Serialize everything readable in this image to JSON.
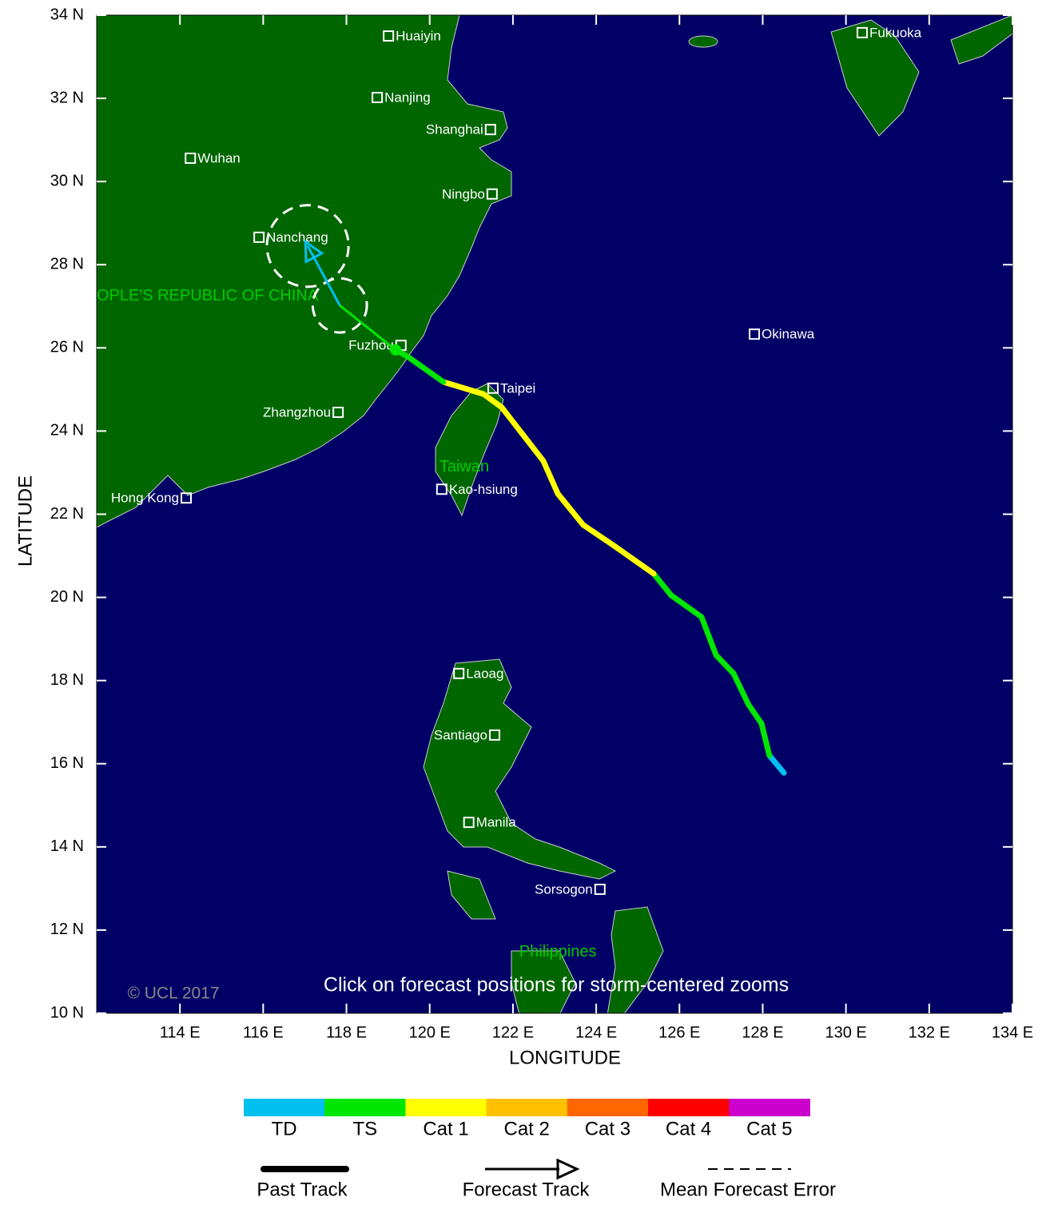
{
  "chart_data": {
    "type": "track-map",
    "xlabel": "LONGITUDE",
    "ylabel": "LATITUDE",
    "xlim": [
      112,
      134
    ],
    "ylim": [
      10,
      34
    ],
    "xticks": [
      {
        "value": 114,
        "label": "114 E"
      },
      {
        "value": 116,
        "label": "116 E"
      },
      {
        "value": 118,
        "label": "118 E"
      },
      {
        "value": 120,
        "label": "120 E"
      },
      {
        "value": 122,
        "label": "122 E"
      },
      {
        "value": 124,
        "label": "124 E"
      },
      {
        "value": 126,
        "label": "126 E"
      },
      {
        "value": 128,
        "label": "128 E"
      },
      {
        "value": 130,
        "label": "130 E"
      },
      {
        "value": 132,
        "label": "132 E"
      },
      {
        "value": 134,
        "label": "134 E"
      }
    ],
    "yticks": [
      {
        "value": 10,
        "label": "10 N"
      },
      {
        "value": 12,
        "label": "12 N"
      },
      {
        "value": 14,
        "label": "14 N"
      },
      {
        "value": 16,
        "label": "16 N"
      },
      {
        "value": 18,
        "label": "18 N"
      },
      {
        "value": 20,
        "label": "20 N"
      },
      {
        "value": 22,
        "label": "22 N"
      },
      {
        "value": 24,
        "label": "24 N"
      },
      {
        "value": 26,
        "label": "26 N"
      },
      {
        "value": 28,
        "label": "28 N"
      },
      {
        "value": 30,
        "label": "30 N"
      },
      {
        "value": 32,
        "label": "32 N"
      },
      {
        "value": 34,
        "label": "34 N"
      }
    ],
    "categories": [
      {
        "name": "TD",
        "color": "#00c0f0"
      },
      {
        "name": "TS",
        "color": "#00e600"
      },
      {
        "name": "Cat 1",
        "color": "#ffff00"
      },
      {
        "name": "Cat 2",
        "color": "#ffc000"
      },
      {
        "name": "Cat 3",
        "color": "#ff6600"
      },
      {
        "name": "Cat 4",
        "color": "#ff0000"
      },
      {
        "name": "Cat 5",
        "color": "#cc00cc"
      }
    ],
    "past_track": {
      "name": "Past Track",
      "lon": [
        128.51,
        128.16,
        127.97,
        127.66,
        127.3,
        126.88,
        126.53,
        125.8,
        125.38,
        124.46,
        123.69,
        123.08,
        122.73,
        121.73,
        121.29,
        120.33,
        119.47,
        119.18
      ],
      "lat": [
        15.78,
        16.2,
        16.97,
        17.42,
        18.17,
        18.61,
        19.53,
        20.05,
        20.57,
        21.22,
        21.74,
        22.49,
        23.28,
        24.57,
        24.89,
        25.18,
        25.79,
        25.95
      ],
      "category": [
        "TD",
        "TD",
        "TS",
        "TS",
        "TS",
        "TS",
        "TS",
        "TS",
        "TS",
        "Cat 1",
        "Cat 1",
        "Cat 1",
        "Cat 1",
        "Cat 1",
        "Cat 1",
        "Cat 1",
        "TS",
        "TS"
      ]
    },
    "forecast_track": {
      "name": "Forecast Track",
      "lon": [
        117.84,
        117.07
      ],
      "lat": [
        27.02,
        28.45
      ],
      "category": [
        "TS",
        "TD"
      ],
      "error_radius": [
        0.65,
        0.98
      ]
    },
    "error_legend": "Mean Forecast Error",
    "cities": [
      {
        "name": "Huaiyin",
        "lon": 119.01,
        "lat": 33.5
      },
      {
        "name": "Nanjing",
        "lon": 118.74,
        "lat": 32.02
      },
      {
        "name": "Shanghai",
        "lon": 121.46,
        "lat": 31.25
      },
      {
        "name": "Wuhan",
        "lon": 114.25,
        "lat": 30.56
      },
      {
        "name": "Ningbo",
        "lon": 121.5,
        "lat": 29.7
      },
      {
        "name": "Nanchang",
        "lon": 115.9,
        "lat": 28.66
      },
      {
        "name": "Fuzhou",
        "lon": 119.31,
        "lat": 26.06
      },
      {
        "name": "Taipei",
        "lon": 121.52,
        "lat": 25.03
      },
      {
        "name": "Zhangzhou",
        "lon": 117.8,
        "lat": 24.45
      },
      {
        "name": "Kao-hsiung",
        "lon": 120.29,
        "lat": 22.6
      },
      {
        "name": "Hong Kong",
        "lon": 114.15,
        "lat": 22.39
      },
      {
        "name": "Okinawa",
        "lon": 127.8,
        "lat": 26.33
      },
      {
        "name": "Fukuoka",
        "lon": 130.39,
        "lat": 33.58
      },
      {
        "name": "Laoag",
        "lon": 120.7,
        "lat": 18.17
      },
      {
        "name": "Santiago",
        "lon": 121.56,
        "lat": 16.69
      },
      {
        "name": "Manila",
        "lon": 120.94,
        "lat": 14.59
      },
      {
        "name": "Sorsogon",
        "lon": 124.09,
        "lat": 12.98
      }
    ],
    "regions": [
      {
        "name": "OPLE'S REPUBLIC OF CHINA",
        "lon": 112.0,
        "lat": 27.24
      },
      {
        "name": "Taiwan",
        "lon": 120.83,
        "lat": 23.13
      },
      {
        "name": "Philippines",
        "lon": 123.08,
        "lat": 11.47
      }
    ],
    "note": "Click on forecast positions for storm-centered zooms",
    "copyright": "© UCL 2017"
  }
}
